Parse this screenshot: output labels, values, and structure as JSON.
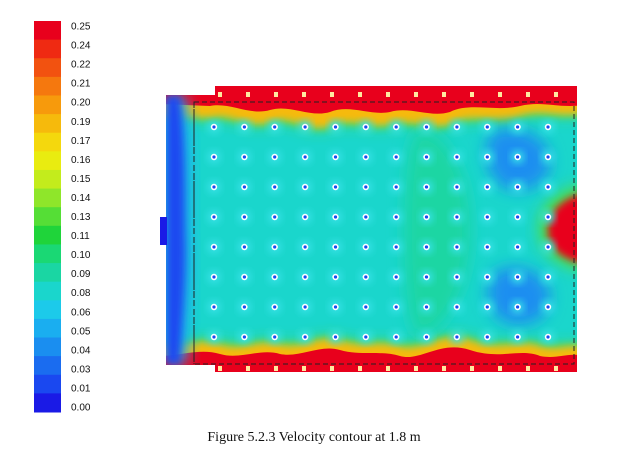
{
  "chart_data": {
    "type": "heatmap",
    "title": "",
    "colorbar": {
      "ticks": [
        "0.25",
        "0.24",
        "0.22",
        "0.21",
        "0.20",
        "0.19",
        "0.17",
        "0.16",
        "0.15",
        "0.14",
        "0.13",
        "0.11",
        "0.10",
        "0.09",
        "0.08",
        "0.06",
        "0.05",
        "0.04",
        "0.03",
        "0.01",
        "0.00"
      ],
      "colors": [
        "#e8001c",
        "#ef2a12",
        "#f25210",
        "#f5780e",
        "#f79a0c",
        "#f6ba0c",
        "#f4d80d",
        "#e9ec10",
        "#c3ec1c",
        "#8fe62a",
        "#55de36",
        "#1fd43a",
        "#1ad874",
        "#1ad6a3",
        "#1ad6cc",
        "#1ccaea",
        "#1aaef0",
        "#1a8ef0",
        "#1a6cf0",
        "#1a48f0",
        "#1a1ae6"
      ]
    },
    "grid": {
      "rows": 8,
      "columns": 12
    },
    "regions": {
      "bulk": 0.07,
      "top_band": 0.25,
      "bottom_band": 0.25,
      "right_bulge": 0.25,
      "left_inlet": 0.01,
      "right_low_upper": 0.04,
      "right_low_lower": 0.04
    }
  },
  "caption": "Figure 5.2.3 Velocity contour at 1.8 m"
}
